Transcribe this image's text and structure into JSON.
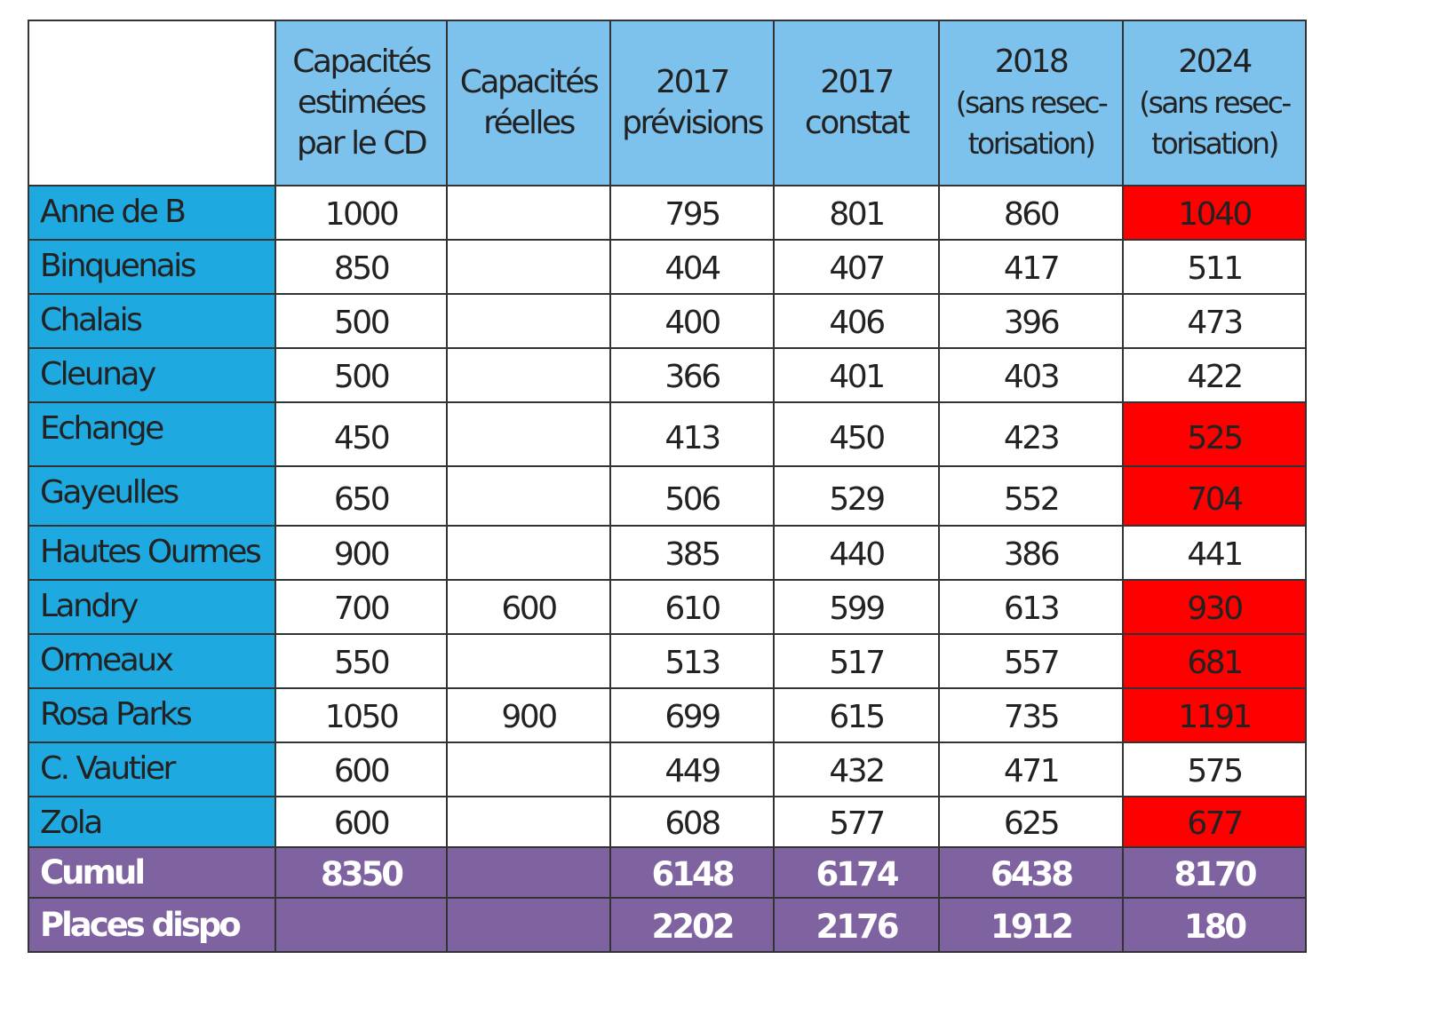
{
  "colors": {
    "header_bg": "#7dc2ec",
    "name_bg": "#1fa9e1",
    "alert_bg": "#ff0000",
    "summary_bg": "#7e63a0",
    "border": "#333333"
  },
  "chart_data": {
    "type": "table",
    "columns": [
      {
        "lines": [
          ""
        ]
      },
      {
        "lines": [
          "Capacités",
          "estimées",
          "par le CD"
        ]
      },
      {
        "lines": [
          "Capacités",
          "réelles"
        ]
      },
      {
        "lines": [
          "2017",
          "prévisions"
        ]
      },
      {
        "lines": [
          "2017",
          "constat"
        ]
      },
      {
        "lines": [
          "2018",
          "(sans resec-",
          "torisation)"
        ]
      },
      {
        "lines": [
          "2024",
          "(sans resec-",
          "torisation)"
        ]
      }
    ],
    "rows": [
      {
        "name": "Anne de B",
        "cells": [
          "1000",
          "",
          "795",
          "801",
          "860",
          "1040"
        ],
        "alert": true
      },
      {
        "name": "Binquenais",
        "cells": [
          "850",
          "",
          "404",
          "407",
          "417",
          "511"
        ],
        "alert": false
      },
      {
        "name": "Chalais",
        "cells": [
          "500",
          "",
          "400",
          "406",
          "396",
          "473"
        ],
        "alert": false
      },
      {
        "name": "Cleunay",
        "cells": [
          "500",
          "",
          "366",
          "401",
          "403",
          "422"
        ],
        "alert": false
      },
      {
        "name": "Echange",
        "cells": [
          "450",
          "",
          "413",
          "450",
          "423",
          "525"
        ],
        "alert": true
      },
      {
        "name": "Gayeulles",
        "cells": [
          "650",
          "",
          "506",
          "529",
          "552",
          "704"
        ],
        "alert": true
      },
      {
        "name": "Hautes Ourmes",
        "cells": [
          "900",
          "",
          "385",
          "440",
          "386",
          "441"
        ],
        "alert": false
      },
      {
        "name": "Landry",
        "cells": [
          "700",
          "600",
          "610",
          "599",
          "613",
          "930"
        ],
        "alert": true
      },
      {
        "name": "Ormeaux",
        "cells": [
          "550",
          "",
          "513",
          "517",
          "557",
          "681"
        ],
        "alert": true
      },
      {
        "name": "Rosa Parks",
        "cells": [
          "1050",
          "900",
          "699",
          "615",
          "735",
          "1191"
        ],
        "alert": true
      },
      {
        "name": "C. Vautier",
        "cells": [
          "600",
          "",
          "449",
          "432",
          "471",
          "575"
        ],
        "alert": false
      },
      {
        "name": "Zola",
        "cells": [
          "600",
          "",
          "608",
          "577",
          "625",
          "677"
        ],
        "alert": true
      }
    ],
    "summary_rows": [
      {
        "name": "Cumul",
        "cells": [
          "8350",
          "",
          "6148",
          "6174",
          "6438",
          "8170"
        ]
      },
      {
        "name": "Places dispo",
        "cells": [
          "",
          "",
          "2202",
          "2176",
          "1912",
          "180"
        ]
      }
    ]
  }
}
